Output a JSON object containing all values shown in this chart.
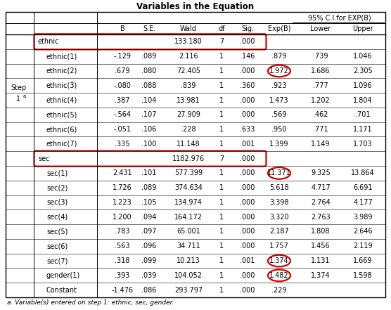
{
  "title": "Variables in the Equation",
  "footnote": "a. Variable(s) entered on step 1: ethnic, sec, gender.",
  "rows": [
    {
      "label": "ethnic",
      "indent": 0,
      "B": "",
      "SE": "",
      "Wald": "133.180",
      "df": "7",
      "Sig": ".000",
      "ExpB": "",
      "Lower": "",
      "Upper": "",
      "is_step": true,
      "circle_row": true,
      "circle_expb": false
    },
    {
      "label": "ethnic(1)",
      "indent": 1,
      "B": "-.129",
      "SE": ".089",
      "Wald": "2.116",
      "df": "1",
      "Sig": ".146",
      "ExpB": ".879",
      "Lower": ".739",
      "Upper": "1.046",
      "is_step": false,
      "circle_row": false,
      "circle_expb": false
    },
    {
      "label": "ethnic(2)",
      "indent": 1,
      "B": ".679",
      "SE": ".080",
      "Wald": "72.405",
      "df": "1",
      "Sig": ".000",
      "ExpB": "1.972",
      "Lower": "1.686",
      "Upper": "2.305",
      "is_step": false,
      "circle_row": false,
      "circle_expb": true
    },
    {
      "label": "ethnic(3)",
      "indent": 1,
      "B": "-.080",
      "SE": ".088",
      "Wald": ".839",
      "df": "1",
      "Sig": ".360",
      "ExpB": ".923",
      "Lower": ".777",
      "Upper": "1.096",
      "is_step": false,
      "circle_row": false,
      "circle_expb": false
    },
    {
      "label": "ethnic(4)",
      "indent": 1,
      "B": ".387",
      "SE": ".104",
      "Wald": "13.981",
      "df": "1",
      "Sig": ".000",
      "ExpB": "1.473",
      "Lower": "1.202",
      "Upper": "1.804",
      "is_step": false,
      "circle_row": false,
      "circle_expb": false
    },
    {
      "label": "ethnic(5)",
      "indent": 1,
      "B": "-.564",
      "SE": ".107",
      "Wald": "27.909",
      "df": "1",
      "Sig": ".000",
      "ExpB": ".569",
      "Lower": ".462",
      "Upper": ".701",
      "is_step": false,
      "circle_row": false,
      "circle_expb": false
    },
    {
      "label": "ethnic(6)",
      "indent": 1,
      "B": "-.051",
      "SE": ".106",
      "Wald": ".228",
      "df": "1",
      "Sig": ".633",
      "ExpB": ".950",
      "Lower": ".771",
      "Upper": "1.171",
      "is_step": false,
      "circle_row": false,
      "circle_expb": false
    },
    {
      "label": "ethnic(7)",
      "indent": 1,
      "B": ".335",
      "SE": ".100",
      "Wald": "11.148",
      "df": "1",
      "Sig": ".001",
      "ExpB": "1.399",
      "Lower": "1.149",
      "Upper": "1.703",
      "is_step": false,
      "circle_row": false,
      "circle_expb": false
    },
    {
      "label": "sec",
      "indent": 0,
      "B": "",
      "SE": "",
      "Wald": "1182.976",
      "df": "7",
      "Sig": ".000",
      "ExpB": "",
      "Lower": "",
      "Upper": "",
      "is_step": false,
      "circle_row": true,
      "circle_expb": false
    },
    {
      "label": "sec(1)",
      "indent": 1,
      "B": "2.431",
      "SE": ".101",
      "Wald": "577.399",
      "df": "1",
      "Sig": ".000",
      "ExpB": "11.371",
      "Lower": "9.325",
      "Upper": "13.864",
      "is_step": false,
      "circle_row": false,
      "circle_expb": true
    },
    {
      "label": "sec(2)",
      "indent": 1,
      "B": "1.726",
      "SE": ".089",
      "Wald": "374.634",
      "df": "1",
      "Sig": ".000",
      "ExpB": "5.618",
      "Lower": "4.717",
      "Upper": "6.691",
      "is_step": false,
      "circle_row": false,
      "circle_expb": false
    },
    {
      "label": "sec(3)",
      "indent": 1,
      "B": "1.223",
      "SE": ".105",
      "Wald": "134.974",
      "df": "1",
      "Sig": ".000",
      "ExpB": "3.398",
      "Lower": "2.764",
      "Upper": "4.177",
      "is_step": false,
      "circle_row": false,
      "circle_expb": false
    },
    {
      "label": "sec(4)",
      "indent": 1,
      "B": "1.200",
      "SE": ".094",
      "Wald": "164.172",
      "df": "1",
      "Sig": ".000",
      "ExpB": "3.320",
      "Lower": "2.763",
      "Upper": "3.989",
      "is_step": false,
      "circle_row": false,
      "circle_expb": false
    },
    {
      "label": "sec(5)",
      "indent": 1,
      "B": ".783",
      "SE": ".097",
      "Wald": "65.001",
      "df": "1",
      "Sig": ".000",
      "ExpB": "2.187",
      "Lower": "1.808",
      "Upper": "2.646",
      "is_step": false,
      "circle_row": false,
      "circle_expb": false
    },
    {
      "label": "sec(6)",
      "indent": 1,
      "B": ".563",
      "SE": ".096",
      "Wald": "34.711",
      "df": "1",
      "Sig": ".000",
      "ExpB": "1.757",
      "Lower": "1.456",
      "Upper": "2.119",
      "is_step": false,
      "circle_row": false,
      "circle_expb": false
    },
    {
      "label": "sec(7)",
      "indent": 1,
      "B": ".318",
      "SE": ".099",
      "Wald": "10.213",
      "df": "1",
      "Sig": ".001",
      "ExpB": "1.374",
      "Lower": "1.131",
      "Upper": "1.669",
      "is_step": false,
      "circle_row": false,
      "circle_expb": true
    },
    {
      "label": "gender(1)",
      "indent": 1,
      "B": ".393",
      "SE": ".039",
      "Wald": "104.052",
      "df": "1",
      "Sig": ".000",
      "ExpB": "1.482",
      "Lower": "1.374",
      "Upper": "1.598",
      "is_step": false,
      "circle_row": false,
      "circle_expb": true
    },
    {
      "label": "Constant",
      "indent": 1,
      "B": "-1.476",
      "SE": ".086",
      "Wald": "293.797",
      "df": "1",
      "Sig": ".000",
      "ExpB": ".229",
      "Lower": "",
      "Upper": "",
      "is_step": false,
      "circle_row": false,
      "circle_expb": false
    }
  ],
  "circle_color": "#cc0000",
  "bg_color": "#ffffff",
  "text_color": "#000000",
  "font_size": 7.0,
  "title_font_size": 8.5
}
